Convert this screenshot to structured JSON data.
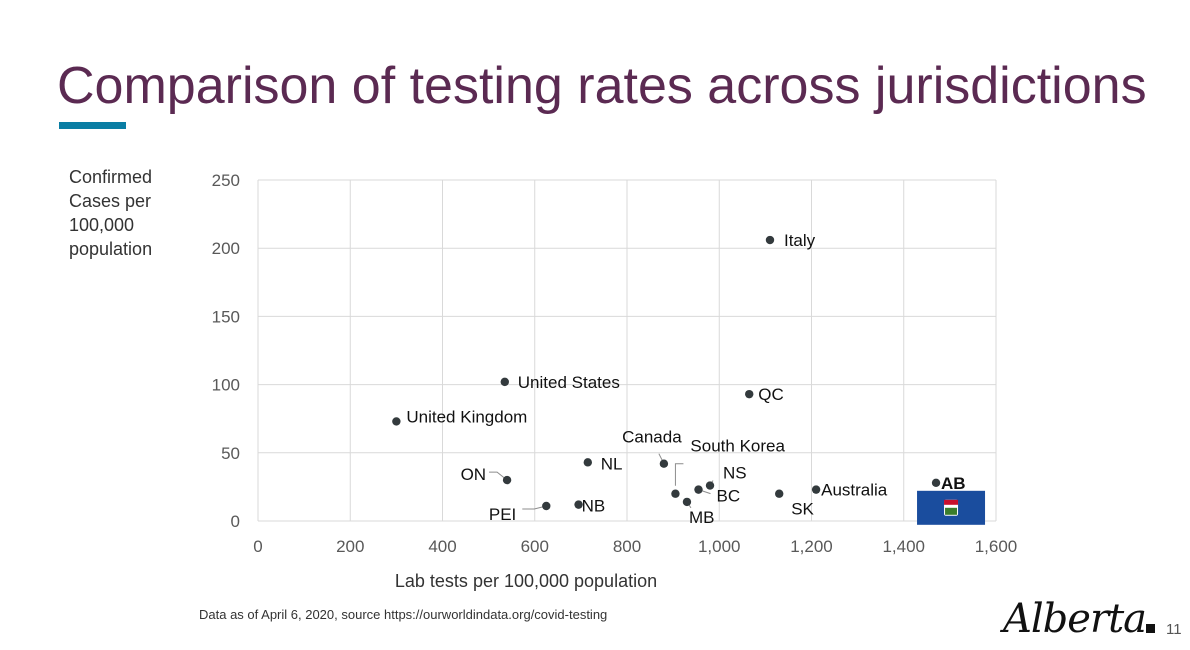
{
  "slide": {
    "title": "Comparison of testing rates across jurisdictions",
    "source_note": "Data as of April 6, 2020, source https://ourworldindata.org/covid-testing",
    "page_number": "11",
    "logo_text": "Alberta",
    "accent_color": "#0a7ea4",
    "title_color": "#5b2a52"
  },
  "chart_data": {
    "type": "scatter",
    "title": "",
    "xlabel": "Lab tests per 100,000 population",
    "ylabel": "Confirmed Cases per 100,000 population",
    "xlim": [
      0,
      1600
    ],
    "ylim": [
      0,
      250
    ],
    "xticks": [
      0,
      200,
      400,
      600,
      800,
      1000,
      1200,
      1400,
      1600
    ],
    "xtick_labels": [
      "0",
      "200",
      "400",
      "600",
      "800",
      "1,000",
      "1,200",
      "1,400",
      "1,600"
    ],
    "yticks": [
      0,
      50,
      100,
      150,
      200,
      250
    ],
    "ytick_labels": [
      "0",
      "50",
      "100",
      "150",
      "200",
      "250"
    ],
    "grid": true,
    "legend": "none",
    "marker_color": "#333a3d",
    "highlight_box_color": "#1a4d9e",
    "points": [
      {
        "label": "Italy",
        "x": 1110,
        "y": 206
      },
      {
        "label": "United States",
        "x": 535,
        "y": 102
      },
      {
        "label": "QC",
        "x": 1065,
        "y": 93
      },
      {
        "label": "United Kingdom",
        "x": 300,
        "y": 73
      },
      {
        "label": "Canada",
        "x": 880,
        "y": 42
      },
      {
        "label": "NL",
        "x": 715,
        "y": 43
      },
      {
        "label": "ON",
        "x": 540,
        "y": 30
      },
      {
        "label": "South Korea",
        "x": 905,
        "y": 20
      },
      {
        "label": "NS",
        "x": 980,
        "y": 26
      },
      {
        "label": "BC",
        "x": 955,
        "y": 23
      },
      {
        "label": "MB",
        "x": 930,
        "y": 14
      },
      {
        "label": "SK",
        "x": 1130,
        "y": 20
      },
      {
        "label": "Australia",
        "x": 1210,
        "y": 23
      },
      {
        "label": "AB",
        "x": 1470,
        "y": 28,
        "bold": true
      },
      {
        "label": "NB",
        "x": 695,
        "y": 12
      },
      {
        "label": "PEI",
        "x": 625,
        "y": 11
      }
    ]
  }
}
